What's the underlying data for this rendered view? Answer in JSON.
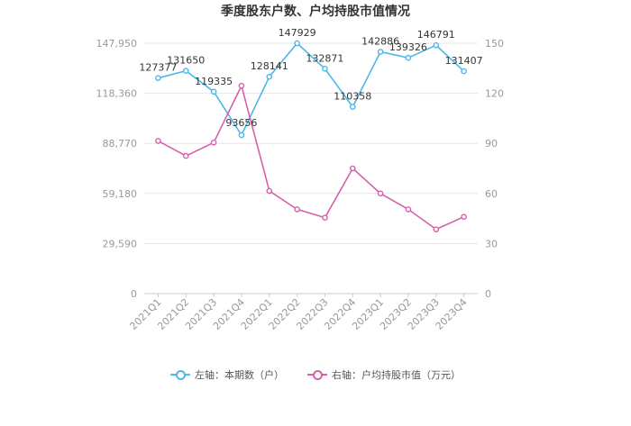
{
  "colors": {
    "left_series": "#4cb7e8",
    "right_series": "#d660aa",
    "axis_text": "#999999",
    "grid": "#e6e6e6"
  },
  "chart_data": {
    "type": "line",
    "title": "季度股东户数、户均持股市值情况",
    "categories": [
      "2021Q1",
      "2021Q2",
      "2021Q3",
      "2021Q4",
      "2022Q1",
      "2022Q2",
      "2022Q3",
      "2022Q4",
      "2023Q1",
      "2023Q2",
      "2023Q3",
      "2023Q4"
    ],
    "left_axis": {
      "ticks": [
        "0",
        "29,590",
        "59,180",
        "88,770",
        "118,360",
        "147,950"
      ],
      "range": [
        0,
        147950
      ]
    },
    "right_axis": {
      "ticks": [
        "0",
        "30",
        "60",
        "90",
        "120",
        "150"
      ],
      "range": [
        0,
        150
      ]
    },
    "series": [
      {
        "name": "左轴：本期数（户）",
        "axis": "left",
        "values": [
          127377,
          131650,
          119335,
          93656,
          128141,
          147929,
          132871,
          110358,
          142886,
          139326,
          146791,
          131407
        ],
        "labels": [
          "127377",
          "131650",
          "119335",
          "93656",
          "128141",
          "147929",
          "132871",
          "110358",
          "142886",
          "139326",
          "146791",
          "131407"
        ],
        "color": "#4cb7e8"
      },
      {
        "name": "右轴：户均持股市值（万元）",
        "axis": "right",
        "values": [
          91.5,
          82.5,
          90.5,
          124.5,
          61.5,
          50.5,
          45.5,
          75,
          60,
          50.5,
          38.5,
          46
        ],
        "color": "#d660aa"
      }
    ],
    "grid": true,
    "legend_position": "bottom"
  }
}
